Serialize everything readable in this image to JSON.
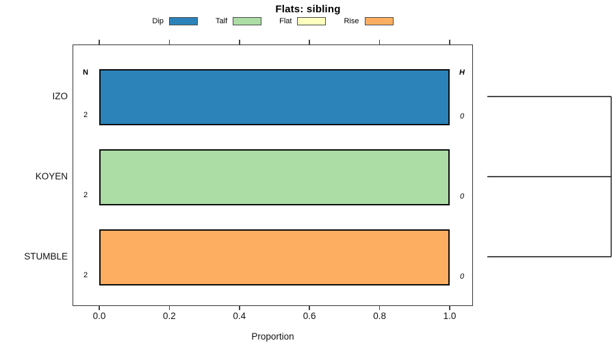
{
  "title": "Flats: sibling",
  "xlabel": "Proportion",
  "legend": {
    "items": [
      {
        "label": "Dip",
        "color": "#2B83BA"
      },
      {
        "label": "Talf",
        "color": "#ABDDA4"
      },
      {
        "label": "Flat",
        "color": "#FFFFBF"
      },
      {
        "label": "Rise",
        "color": "#FDAE61"
      }
    ]
  },
  "chart_data": {
    "type": "bar",
    "orientation": "horizontal",
    "title": "Flats: sibling",
    "xlabel": "Proportion",
    "ylabel": "",
    "xlim": [
      0.0,
      1.0
    ],
    "x_ticks": [
      0.0,
      0.2,
      0.4,
      0.6,
      0.8,
      1.0
    ],
    "grid": false,
    "legend_position": "top",
    "categories": [
      "IZO",
      "KOYEN",
      "STUMBLE"
    ],
    "series": [
      {
        "name": "Dip",
        "color": "#2B83BA",
        "values": [
          1.0,
          0.0,
          0.0
        ]
      },
      {
        "name": "Talf",
        "color": "#ABDDA4",
        "values": [
          0.0,
          1.0,
          0.0
        ]
      },
      {
        "name": "Flat",
        "color": "#FFFFBF",
        "values": [
          0.0,
          0.0,
          0.0
        ]
      },
      {
        "name": "Rise",
        "color": "#FDAE61",
        "values": [
          0.0,
          0.0,
          1.0
        ]
      }
    ],
    "row_annotations": {
      "left_header": "N",
      "right_header": "H",
      "left_values": [
        "2",
        "2",
        "2"
      ],
      "right_values": [
        "0",
        "0",
        "0"
      ]
    },
    "right_panel": {
      "type": "dendrogram",
      "leaves": [
        "IZO",
        "KOYEN",
        "STUMBLE"
      ],
      "joins": "all leaves merge at a single height at the right edge"
    },
    "colors": {
      "bar_border": "#0d0d0d",
      "plot_border": "#333333",
      "dendrogram_line": "#111111"
    }
  }
}
